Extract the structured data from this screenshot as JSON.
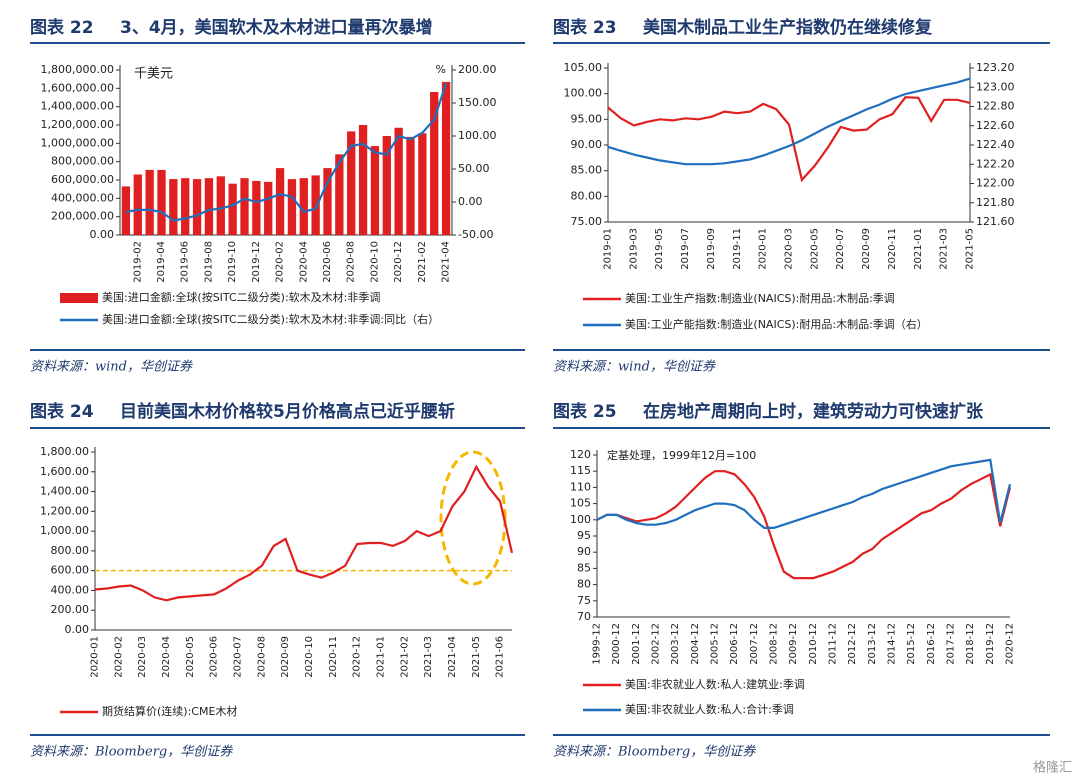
{
  "watermark": "格隆汇",
  "chart_data": [
    {
      "type": "combo",
      "label": "图表 22",
      "title": "3、4月，美国软木及木材进口量再次暴增",
      "source": "资料来源：wind，华创证券",
      "y_unit": "千美元",
      "y2_unit": "%",
      "categories": [
        null,
        "2019-02",
        null,
        "2019-04",
        null,
        "2019-06",
        null,
        "2019-08",
        null,
        "2019-10",
        null,
        "2019-12",
        null,
        "2020-02",
        null,
        "2020-04",
        null,
        "2020-06",
        null,
        "2020-08",
        null,
        "2020-10",
        null,
        "2020-12",
        null,
        "2021-02",
        null,
        "2021-04"
      ],
      "series": [
        {
          "name": "美国:进口金额:全球(按SITC二级分类):软木及木材:非季调",
          "type": "bar",
          "color": "#e02020",
          "values": [
            530000,
            660000,
            710000,
            710000,
            610000,
            620000,
            610000,
            620000,
            640000,
            560000,
            620000,
            590000,
            580000,
            730000,
            610000,
            620000,
            650000,
            730000,
            880000,
            1130000,
            1200000,
            970000,
            1080000,
            1170000,
            1070000,
            1110000,
            1560000,
            1670000
          ]
        },
        {
          "name": "美国:进口金额:全球(按SITC二级分类):软木及木材:非季调:同比（右）",
          "type": "line",
          "axis": "y2",
          "color": "#1f6fbf",
          "values": [
            -15,
            -12,
            -12,
            -15,
            -28,
            -25,
            -20,
            -12,
            -10,
            -5,
            5,
            0,
            5,
            12,
            8,
            -15,
            -10,
            30,
            60,
            85,
            88,
            75,
            72,
            100,
            95,
            105,
            125,
            180
          ]
        }
      ],
      "ylim": [
        0,
        1800000
      ],
      "yticks": [
        {
          "value": 0,
          "label": "0.00"
        },
        {
          "value": 200000,
          "label": "200,000.00"
        },
        {
          "value": 400000,
          "label": "400,000.00"
        },
        {
          "value": 600000,
          "label": "600,000.00"
        },
        {
          "value": 800000,
          "label": "800,000.00"
        },
        {
          "value": 1000000,
          "label": "1,000,000.00"
        },
        {
          "value": 1200000,
          "label": "1,200,000.00"
        },
        {
          "value": 1400000,
          "label": "1,400,000.00"
        },
        {
          "value": 1600000,
          "label": "1,600,000.00"
        },
        {
          "value": 1800000,
          "label": "1,800,000.00"
        }
      ],
      "y2lim": [
        -50,
        200
      ],
      "y2ticks": [
        {
          "value": -50,
          "label": "-50.00"
        },
        {
          "value": 0,
          "label": "0.00"
        },
        {
          "value": 50,
          "label": "50.00"
        },
        {
          "value": 100,
          "label": "100.00"
        },
        {
          "value": 150,
          "label": "150.00"
        },
        {
          "value": 200,
          "label": "200.00"
        }
      ]
    },
    {
      "type": "line",
      "label": "图表 23",
      "title": "美国木制品工业生产指数仍在继续修复",
      "source": "资料来源：wind，华创证券",
      "categories": [
        "2019-01",
        null,
        "2019-03",
        null,
        "2019-05",
        null,
        "2019-07",
        null,
        "2019-09",
        null,
        "2019-11",
        null,
        "2020-01",
        null,
        "2020-03",
        null,
        "2020-05",
        null,
        "2020-07",
        null,
        "2020-09",
        null,
        "2020-11",
        null,
        "2021-01",
        null,
        "2021-03",
        null,
        "2021-05"
      ],
      "series": [
        {
          "name": "美国:工业生产指数:制造业(NAICS):耐用品:木制品:季调",
          "color": "#e02020",
          "values": [
            97.3,
            95.2,
            93.8,
            94.5,
            95.0,
            94.8,
            95.2,
            95.0,
            95.5,
            96.5,
            96.2,
            96.5,
            98.0,
            97.0,
            94.0,
            83.2,
            86.0,
            89.5,
            93.5,
            92.8,
            93.0,
            95.0,
            96.0,
            99.3,
            99.2,
            94.7,
            98.8,
            98.8,
            98.2
          ]
        },
        {
          "name": "美国:工业产能指数:制造业(NAICS):耐用品:木制品:季调（右）",
          "axis": "y2",
          "color": "#1f6fbf",
          "values": [
            122.38,
            122.34,
            122.3,
            122.27,
            122.24,
            122.22,
            122.2,
            122.2,
            122.2,
            122.21,
            122.23,
            122.25,
            122.29,
            122.34,
            122.39,
            122.45,
            122.52,
            122.59,
            122.65,
            122.71,
            122.77,
            122.82,
            122.88,
            122.93,
            122.96,
            122.99,
            123.02,
            123.05,
            123.09
          ]
        }
      ],
      "ylim": [
        75,
        105
      ],
      "yticks": [
        {
          "value": 75,
          "label": "75.00"
        },
        {
          "value": 80,
          "label": "80.00"
        },
        {
          "value": 85,
          "label": "85.00"
        },
        {
          "value": 90,
          "label": "90.00"
        },
        {
          "value": 95,
          "label": "95.00"
        },
        {
          "value": 100,
          "label": "100.00"
        },
        {
          "value": 105,
          "label": "105.00"
        }
      ],
      "y2lim": [
        121.6,
        123.2
      ],
      "y2ticks": [
        {
          "value": 121.6,
          "label": "121.60"
        },
        {
          "value": 121.8,
          "label": "121.80"
        },
        {
          "value": 122,
          "label": "122.00"
        },
        {
          "value": 122.2,
          "label": "122.20"
        },
        {
          "value": 122.4,
          "label": "122.40"
        },
        {
          "value": 122.6,
          "label": "122.60"
        },
        {
          "value": 122.8,
          "label": "122.80"
        },
        {
          "value": 123,
          "label": "123.00"
        },
        {
          "value": 123.2,
          "label": "123.20"
        }
      ]
    },
    {
      "type": "line",
      "label": "图表 24",
      "title": "目前美国木材价格较5月价格高点已近乎腰斩",
      "source": "资料来源：Bloomberg，华创证券",
      "categories": [
        "2020-01",
        null,
        "2020-02",
        null,
        "2020-03",
        null,
        "2020-04",
        null,
        "2020-05",
        null,
        "2020-06",
        null,
        "2020-07",
        null,
        "2020-08",
        null,
        "2020-09",
        null,
        "2020-10",
        null,
        "2020-11",
        null,
        "2020-12",
        null,
        "2021-01",
        null,
        "2021-02",
        null,
        "2021-03",
        null,
        "2021-04",
        null,
        "2021-05",
        null,
        "2021-06",
        null
      ],
      "series": [
        {
          "name": "期货结算价(连续):CME木材",
          "color": "#e02020",
          "values": [
            410,
            420,
            440,
            450,
            400,
            330,
            300,
            330,
            340,
            350,
            360,
            420,
            500,
            560,
            650,
            850,
            920,
            600,
            560,
            530,
            580,
            650,
            870,
            880,
            880,
            850,
            900,
            1000,
            950,
            1000,
            1250,
            1400,
            1650,
            1450,
            1300,
            780
          ]
        }
      ],
      "reference_line": {
        "value": 600,
        "color": "#f5b800"
      },
      "ylim": [
        0,
        1800
      ],
      "yticks": [
        {
          "value": 0,
          "label": "0.00"
        },
        {
          "value": 200,
          "label": "200.00"
        },
        {
          "value": 400,
          "label": "400.00"
        },
        {
          "value": 600,
          "label": "600.00"
        },
        {
          "value": 800,
          "label": "800.00"
        },
        {
          "value": 1000,
          "label": "1,000.00"
        },
        {
          "value": 1200,
          "label": "1,200.00"
        },
        {
          "value": 1400,
          "label": "1,400.00"
        },
        {
          "value": 1600,
          "label": "1,600.00"
        },
        {
          "value": 1800,
          "label": "1,800.00"
        }
      ]
    },
    {
      "type": "line",
      "label": "图表 25",
      "title": "在房地产周期向上时，建筑劳动力可快速扩张",
      "source": "资料来源：Bloomberg，华创证券",
      "subtitle": "定基处理，1999年12月=100",
      "categories": [
        "1999-12",
        null,
        "2000-12",
        null,
        "2001-12",
        null,
        "2002-12",
        null,
        "2003-12",
        null,
        "2004-12",
        null,
        "2005-12",
        null,
        "2006-12",
        null,
        "2007-12",
        null,
        "2008-12",
        null,
        "2009-12",
        null,
        "2010-12",
        null,
        "2011-12",
        null,
        "2012-12",
        null,
        "2013-12",
        null,
        "2014-12",
        null,
        "2015-12",
        null,
        "2016-12",
        null,
        "2017-12",
        null,
        "2018-12",
        null,
        "2019-12",
        null,
        "2020-12"
      ],
      "series": [
        {
          "name": "美国:非农就业人数:私人:建筑业:季调",
          "color": "#e02020",
          "values": [
            100,
            101.5,
            101.5,
            100.5,
            99.5,
            100,
            100.5,
            102,
            104,
            107,
            110,
            113,
            115,
            115,
            114,
            111,
            107,
            101,
            92,
            84,
            82,
            82,
            82,
            83,
            84,
            85.5,
            87,
            89.5,
            91,
            94,
            96,
            98,
            100,
            102,
            103,
            105,
            106.5,
            109,
            111,
            112.5,
            114,
            98,
            110
          ]
        },
        {
          "name": "美国:非农就业人数:私人:合计:季调",
          "color": "#1f6fbf",
          "values": [
            100,
            101.5,
            101.5,
            100,
            99,
            98.5,
            98.5,
            99,
            100,
            101.5,
            103,
            104,
            105,
            105,
            104.5,
            103,
            100,
            97.5,
            97.5,
            98.5,
            99.5,
            100.5,
            101.5,
            102.5,
            103.5,
            104.5,
            105.5,
            107,
            108,
            109.5,
            110.5,
            111.5,
            112.5,
            113.5,
            114.5,
            115.5,
            116.5,
            117,
            117.5,
            118,
            118.5,
            99,
            111
          ]
        }
      ],
      "ylim": [
        70,
        120
      ],
      "yticks": [
        70,
        75,
        80,
        85,
        90,
        95,
        100,
        105,
        110,
        115,
        120
      ]
    }
  ]
}
